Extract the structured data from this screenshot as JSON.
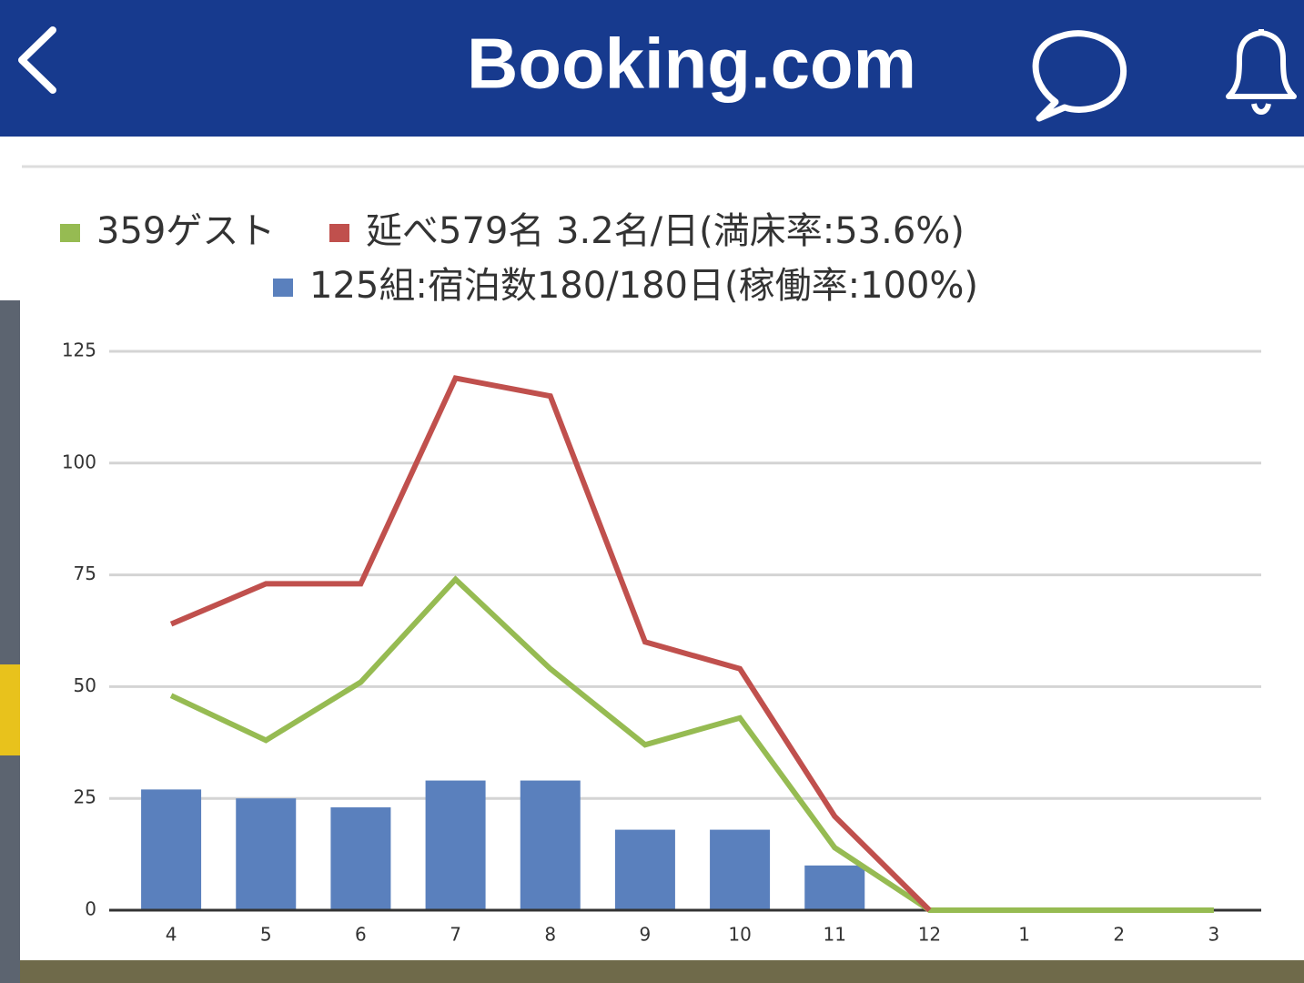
{
  "header": {
    "title": "Booking.com"
  },
  "chart_data": {
    "type": "bar",
    "categories": [
      "4",
      "5",
      "6",
      "7",
      "8",
      "9",
      "10",
      "11",
      "12",
      "1",
      "2",
      "3"
    ],
    "series": [
      {
        "name": "359ゲスト",
        "type": "line",
        "color": "#96bb52",
        "values": [
          48,
          38,
          51,
          74,
          54,
          37,
          43,
          14,
          0,
          0,
          0,
          0
        ]
      },
      {
        "name": "延べ579名 3.2名/日(満床率:53.6%)",
        "type": "line",
        "color": "#c0504d",
        "values": [
          64,
          73,
          73,
          119,
          115,
          60,
          54,
          21,
          0,
          null,
          null,
          null
        ]
      },
      {
        "name": "125組:宿泊数180/180日(稼働率:100%)",
        "type": "bar",
        "color": "#5a80bd",
        "values": [
          27,
          25,
          23,
          29,
          29,
          18,
          18,
          10,
          0,
          0,
          0,
          0
        ]
      }
    ],
    "ylim": [
      0,
      125
    ],
    "yticks": [
      0,
      25,
      50,
      75,
      100,
      125
    ],
    "grid": true
  }
}
